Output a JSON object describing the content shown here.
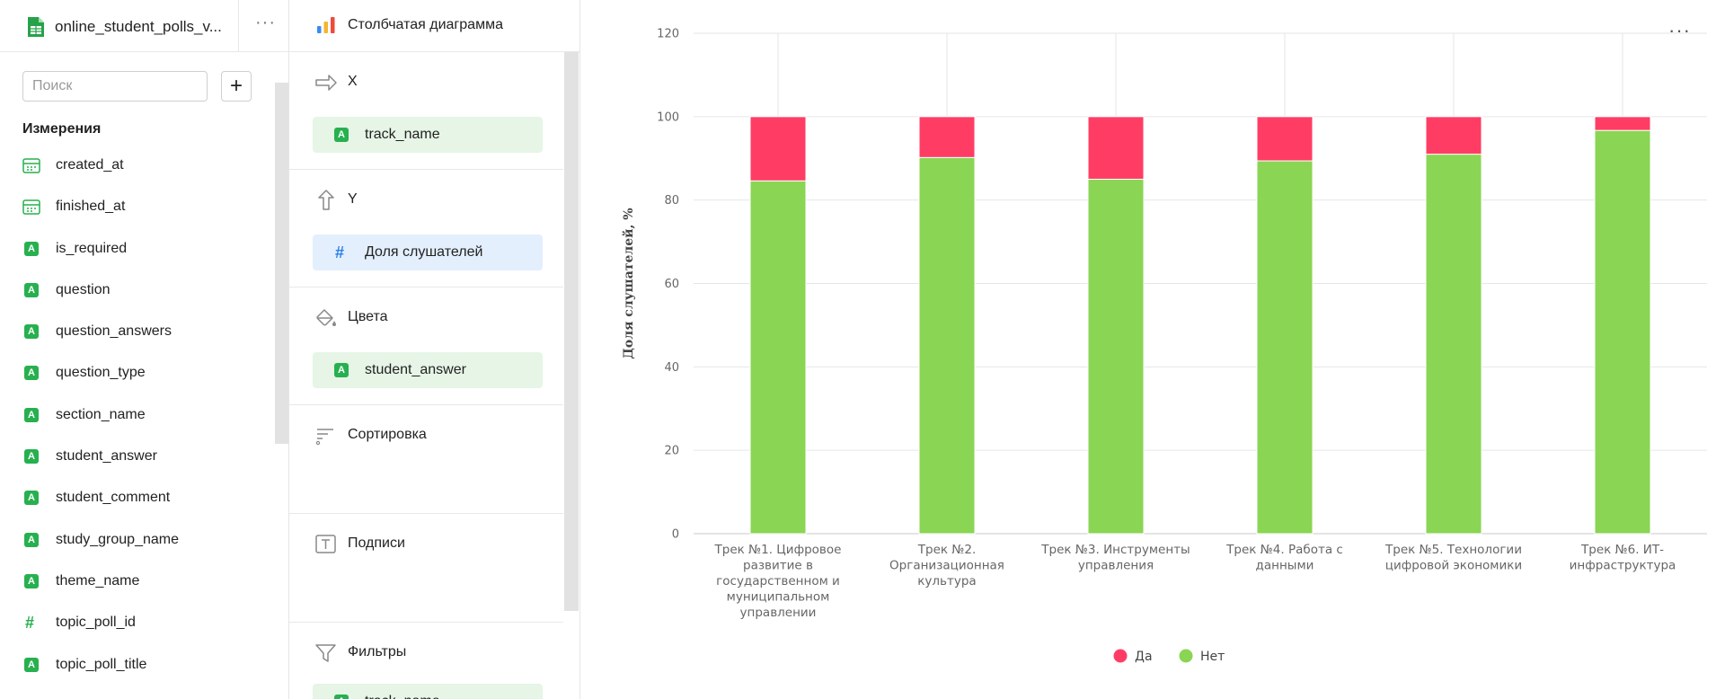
{
  "dataset": {
    "title": "online_student_polls_v...",
    "search_placeholder": "Поиск",
    "dimensions_title": "Измерения",
    "fields": [
      {
        "name": "created_at",
        "type": "date"
      },
      {
        "name": "finished_at",
        "type": "date"
      },
      {
        "name": "is_required",
        "type": "string"
      },
      {
        "name": "question",
        "type": "string"
      },
      {
        "name": "question_answers",
        "type": "string"
      },
      {
        "name": "question_type",
        "type": "string"
      },
      {
        "name": "section_name",
        "type": "string"
      },
      {
        "name": "student_answer",
        "type": "string"
      },
      {
        "name": "student_comment",
        "type": "string"
      },
      {
        "name": "study_group_name",
        "type": "string"
      },
      {
        "name": "theme_name",
        "type": "string"
      },
      {
        "name": "topic_poll_id",
        "type": "number"
      },
      {
        "name": "topic_poll_title",
        "type": "string"
      }
    ]
  },
  "wizard": {
    "viz_type": "Столбчатая диаграмма",
    "x": {
      "title": "X",
      "field": "track_name"
    },
    "y": {
      "title": "Y",
      "field": "Доля слушателей"
    },
    "colors": {
      "title": "Цвета",
      "field": "student_answer"
    },
    "sort": {
      "title": "Сортировка"
    },
    "labels": {
      "title": "Подписи"
    },
    "filters": {
      "title": "Фильтры",
      "field": "track_name"
    }
  },
  "chart_data": {
    "type": "bar",
    "stacked": true,
    "categories": [
      "Трек №1. Цифровое развитие в государственном и муниципальном управлении",
      "Трек №2. Организационная культура",
      "Трек №3. Инструменты управления",
      "Трек №4. Работа с данными",
      "Трек №5. Технологии цифровой экономики",
      "Трек №6. ИТ-инфраструктура"
    ],
    "category_lines": [
      [
        "Трек №1. Цифровое",
        "развитие в",
        "государственном и",
        "муниципальном",
        "управлении"
      ],
      [
        "Трек №2.",
        "Организационная",
        "культура"
      ],
      [
        "Трек №3. Инструменты",
        "управления"
      ],
      [
        "Трек №4. Работа с",
        "данными"
      ],
      [
        "Трек №5. Технологии",
        "цифровой экономики"
      ],
      [
        "Трек №6. ИТ-",
        "инфраструктура"
      ]
    ],
    "series": [
      {
        "name": "Нет",
        "color": "#8ad554",
        "values": [
          84.6,
          90.2,
          85.0,
          89.4,
          91.0,
          96.7
        ]
      },
      {
        "name": "Да",
        "color": "#ff3d64",
        "values": [
          15.4,
          9.8,
          15.0,
          10.6,
          9.0,
          3.3
        ]
      }
    ],
    "legend_order": [
      "Да",
      "Нет"
    ],
    "ylabel": "Доля слушателей, %",
    "xlabel": "",
    "ylim": [
      0,
      120
    ],
    "yticks": [
      0,
      20,
      40,
      60,
      80,
      100,
      120
    ],
    "grid": true,
    "legend_position": "bottom-center"
  }
}
